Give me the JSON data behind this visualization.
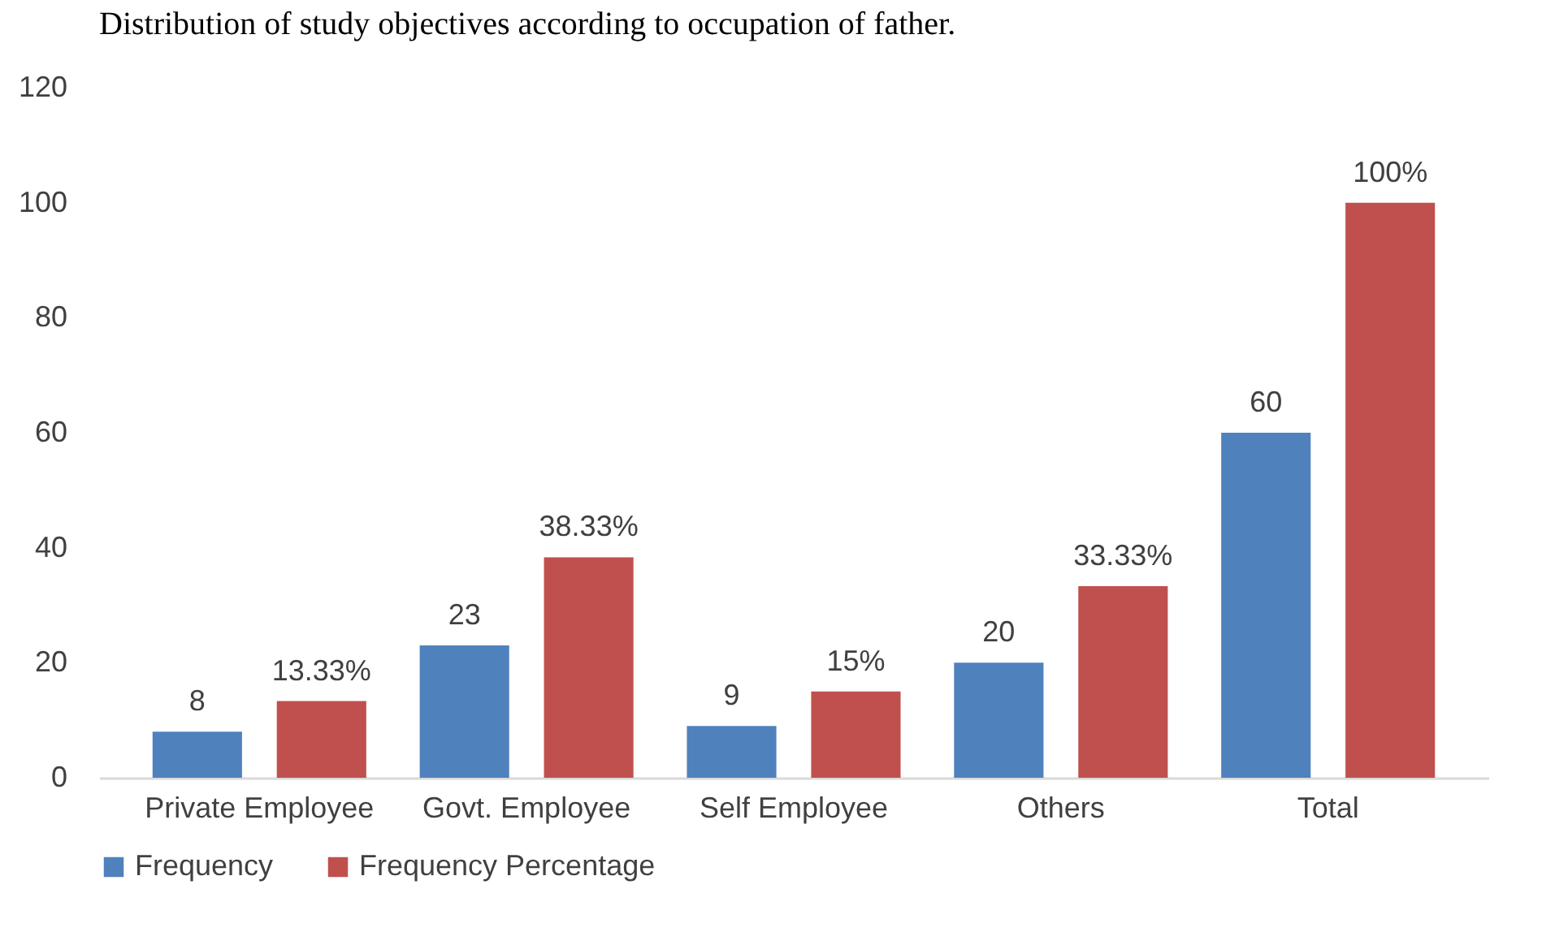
{
  "chart_data": {
    "type": "bar",
    "title": "Distribution of study objectives according to occupation of father.",
    "categories": [
      "Private Employee",
      "Govt. Employee",
      "Self Employee",
      "Others",
      "Total"
    ],
    "series": [
      {
        "name": "Frequency",
        "color": "#4f81bd",
        "values": [
          8,
          23,
          9,
          20,
          60
        ],
        "value_labels": [
          "8",
          "23",
          "9",
          "20",
          "60"
        ]
      },
      {
        "name": "Frequency Percentage",
        "color": "#c0504d",
        "values": [
          13.33,
          38.33,
          15,
          33.33,
          100
        ],
        "value_labels": [
          "13.33%",
          "38.33%",
          "15%",
          "33.33%",
          "100%"
        ]
      }
    ],
    "ylim": [
      0,
      120
    ],
    "yticks": [
      0,
      20,
      40,
      60,
      80,
      100,
      120
    ],
    "grid": false,
    "legend": "bottom"
  }
}
